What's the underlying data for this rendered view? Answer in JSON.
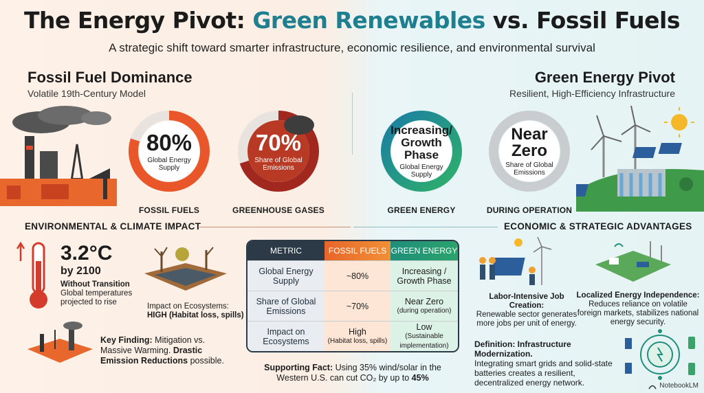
{
  "header": {
    "title_part1": "The Energy Pivot: ",
    "title_green": "Green Renewables",
    "title_part2": " vs. Fossil Fuels",
    "subtitle": "A strategic shift toward smarter infrastructure, economic resilience, and environmental survival"
  },
  "left": {
    "title": "Fossil Fuel Dominance",
    "subtitle": "Volatile 19th-Century Model",
    "donut1": {
      "value": "80%",
      "label": "Global Energy Supply",
      "caption": "FOSSIL FUELS",
      "fraction": 0.8,
      "color": "#e8562a"
    },
    "donut2": {
      "value": "70%",
      "label": "Share of Global Emissions",
      "caption": "GREENHOUSE GASES",
      "fraction": 0.7,
      "color": "#a0281f"
    },
    "band_title": "ENVIRONMENTAL & CLIMATE IMPACT",
    "temp": {
      "value": "3.2°C",
      "year": "by 2100",
      "label": "Without Transition",
      "desc": "Global temperatures projected to rise"
    },
    "ecosystems": {
      "title": "Impact on Ecosystems:",
      "desc": "HIGH (Habitat loss, spills)"
    },
    "finding": {
      "label": "Key Finding:",
      "text": " Mitigation vs. Massive Warming.",
      "bold": " Drastic Emission Reductions",
      "end": " possible."
    }
  },
  "right": {
    "title": "Green Energy Pivot",
    "subtitle": "Resilient, High-Efficiency Infrastructure",
    "donut1": {
      "value": "Increasing/ Growth Phase",
      "label": "Global Energy Supply",
      "caption": "GREEN ENERGY",
      "color": "#1e9b86"
    },
    "donut2": {
      "value": "Near Zero",
      "label": "Share of Global Emissions",
      "caption": "DURING OPERATION",
      "color": "#c9cdd0"
    },
    "band_title": "ECONOMIC & STRATEGIC ADVANTAGES",
    "jobs": {
      "title": "Labor-Intensive Job Creation:",
      "desc": "Renewable sector generates more jobs per unit of energy."
    },
    "independence": {
      "title": "Localized Energy Independence:",
      "desc": "Reduces reliance on volatile foreign markets, stabilizes national energy security."
    },
    "definition": {
      "title": "Definition: Infrastructure Modernization.",
      "desc": "Integrating smart grids and solid-state batteries creates a resilient, decentralized energy network."
    }
  },
  "table": {
    "headers": [
      "METRIC",
      "FOSSIL FUELS",
      "GREEN ENERGY"
    ],
    "rows": [
      {
        "metric": "Global Energy Supply",
        "fossil": "~80%",
        "fossil_note": "",
        "green": "Increasing / Growth Phase",
        "green_note": ""
      },
      {
        "metric": "Share of Global Emissions",
        "fossil": "~70%",
        "fossil_note": "",
        "green": "Near Zero",
        "green_note": "(during operation)"
      },
      {
        "metric": "Impact on Ecosystems",
        "fossil": "High",
        "fossil_note": "(Habitat loss, spills)",
        "green": "Low",
        "green_note": "(Sustainable implementation)"
      }
    ]
  },
  "fact": {
    "label": "Supporting Fact:",
    "text": " Using 35% wind/solar in the Western U.S. can cut CO₂ by up to ",
    "value": "45%"
  },
  "logo": "NotebookLM"
}
